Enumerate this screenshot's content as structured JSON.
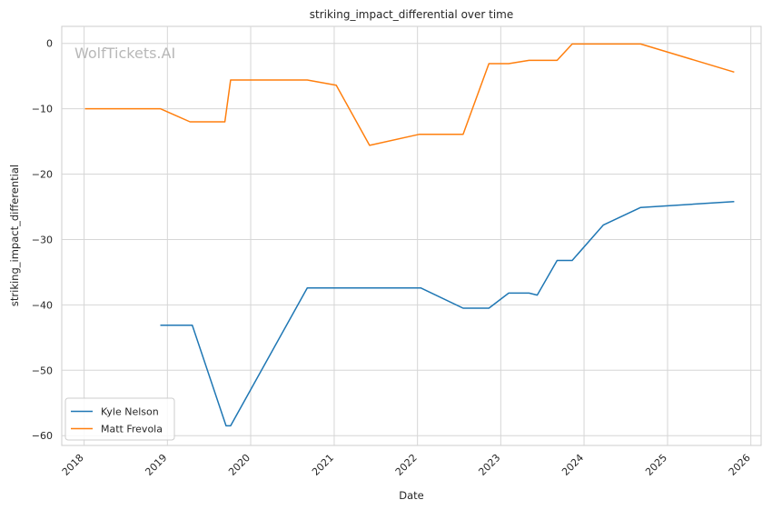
{
  "chart_data": {
    "type": "line",
    "title": "striking_impact_differential over time",
    "xlabel": "Date",
    "ylabel": "striking_impact_differential",
    "watermark": "WolfTickets.AI",
    "x_ticks": [
      "2018",
      "2019",
      "2020",
      "2021",
      "2022",
      "2023",
      "2024",
      "2025",
      "2026"
    ],
    "y_ticks": [
      "0",
      "−10",
      "−20",
      "−30",
      "−40",
      "−50",
      "−60"
    ],
    "ylim": [
      -61.5,
      2.6
    ],
    "xlim": [
      "2017-09-25",
      "2026-02-15"
    ],
    "grid": true,
    "legend_position": "lower-left",
    "series": [
      {
        "name": "Kyle Nelson",
        "color": "#1f77b4",
        "points": [
          {
            "x": "2018-12-01",
            "y": -43.1
          },
          {
            "x": "2019-04-20",
            "y": -43.1
          },
          {
            "x": "2019-09-15",
            "y": -58.5
          },
          {
            "x": "2019-10-05",
            "y": -58.5
          },
          {
            "x": "2020-09-05",
            "y": -37.4
          },
          {
            "x": "2022-01-15",
            "y": -37.4
          },
          {
            "x": "2022-07-20",
            "y": -40.5
          },
          {
            "x": "2022-11-10",
            "y": -40.5
          },
          {
            "x": "2023-02-05",
            "y": -38.2
          },
          {
            "x": "2023-05-05",
            "y": -38.2
          },
          {
            "x": "2023-06-10",
            "y": -38.5
          },
          {
            "x": "2023-09-05",
            "y": -33.2
          },
          {
            "x": "2023-11-10",
            "y": -33.2
          },
          {
            "x": "2024-03-25",
            "y": -27.8
          },
          {
            "x": "2024-09-05",
            "y": -25.1
          },
          {
            "x": "2025-10-20",
            "y": -24.2
          }
        ]
      },
      {
        "name": "Matt Frevola",
        "color": "#ff7f0e",
        "points": [
          {
            "x": "2018-01-05",
            "y": -10.0
          },
          {
            "x": "2018-12-01",
            "y": -10.0
          },
          {
            "x": "2019-04-10",
            "y": -12.0
          },
          {
            "x": "2019-09-10",
            "y": -12.0
          },
          {
            "x": "2019-10-05",
            "y": -5.6
          },
          {
            "x": "2020-09-05",
            "y": -5.6
          },
          {
            "x": "2021-01-10",
            "y": -6.4
          },
          {
            "x": "2021-06-05",
            "y": -15.6
          },
          {
            "x": "2022-01-10",
            "y": -13.9
          },
          {
            "x": "2022-07-20",
            "y": -13.9
          },
          {
            "x": "2022-11-10",
            "y": -3.1
          },
          {
            "x": "2023-02-05",
            "y": -3.1
          },
          {
            "x": "2023-05-05",
            "y": -2.6
          },
          {
            "x": "2023-09-05",
            "y": -2.6
          },
          {
            "x": "2023-11-10",
            "y": -0.1
          },
          {
            "x": "2024-09-05",
            "y": -0.1
          },
          {
            "x": "2025-10-20",
            "y": -4.4
          }
        ]
      }
    ]
  }
}
